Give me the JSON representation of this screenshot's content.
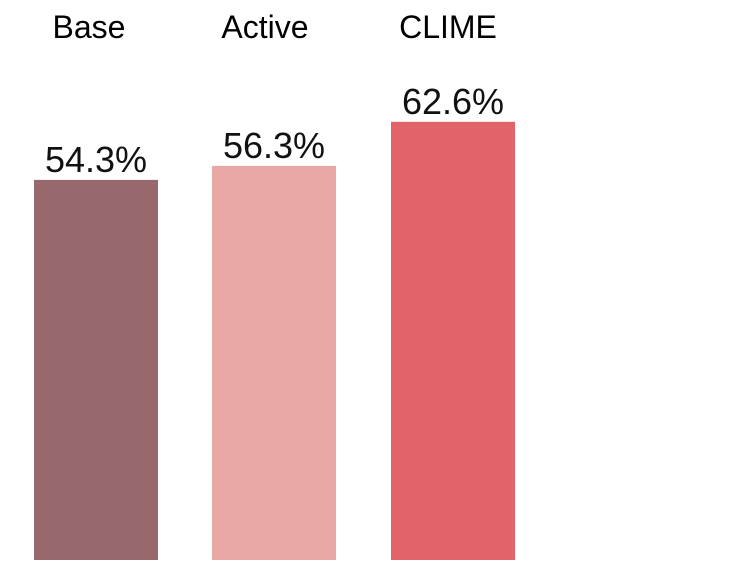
{
  "chart_data": {
    "type": "bar",
    "categories": [
      "Base",
      "Active",
      "CLIME"
    ],
    "values": [
      54.3,
      56.3,
      62.6
    ],
    "value_labels": [
      "54.3%",
      "56.3%",
      "62.6%"
    ],
    "colors": [
      "#98686c",
      "#eaa8a4",
      "#e2646a"
    ],
    "title": "",
    "xlabel": "",
    "ylabel": "",
    "legend_position": "top",
    "grid": false
  }
}
